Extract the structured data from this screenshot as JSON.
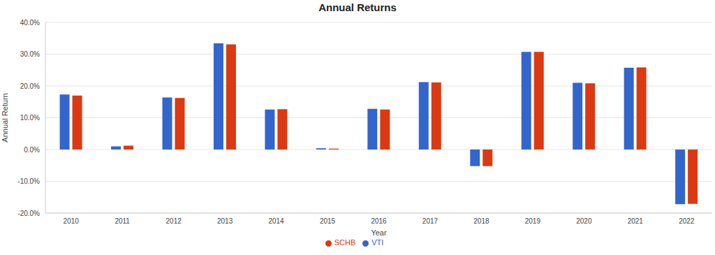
{
  "chart_data": {
    "type": "bar",
    "title": "Annual Returns",
    "x_label": "Year",
    "y_label": "Annual Return",
    "categories": [
      "2010",
      "2011",
      "2012",
      "2013",
      "2014",
      "2015",
      "2016",
      "2017",
      "2018",
      "2019",
      "2020",
      "2021",
      "2022"
    ],
    "series": [
      {
        "name": "VTI",
        "color": "#3366cc",
        "values": [
          17.3,
          1.0,
          16.4,
          33.4,
          12.6,
          0.4,
          12.8,
          21.2,
          -5.2,
          30.7,
          21.0,
          25.7,
          -17.2
        ]
      },
      {
        "name": "SCHB",
        "color": "#dc3912",
        "values": [
          17.0,
          1.2,
          16.2,
          33.1,
          12.7,
          0.3,
          12.6,
          21.1,
          -5.2,
          30.7,
          20.8,
          25.8,
          -17.1
        ]
      }
    ],
    "ylim": [
      -20,
      40
    ],
    "yticks": [
      {
        "value": -20,
        "label": "-20.0%"
      },
      {
        "value": -10,
        "label": "-10.0%"
      },
      {
        "value": 0,
        "label": "0.0%"
      },
      {
        "value": 10,
        "label": "10.0%"
      },
      {
        "value": 20,
        "label": "20.0%"
      },
      {
        "value": 30,
        "label": "30.0%"
      },
      {
        "value": 40,
        "label": "40.0%"
      }
    ],
    "grid": true,
    "legend": "bottom"
  }
}
